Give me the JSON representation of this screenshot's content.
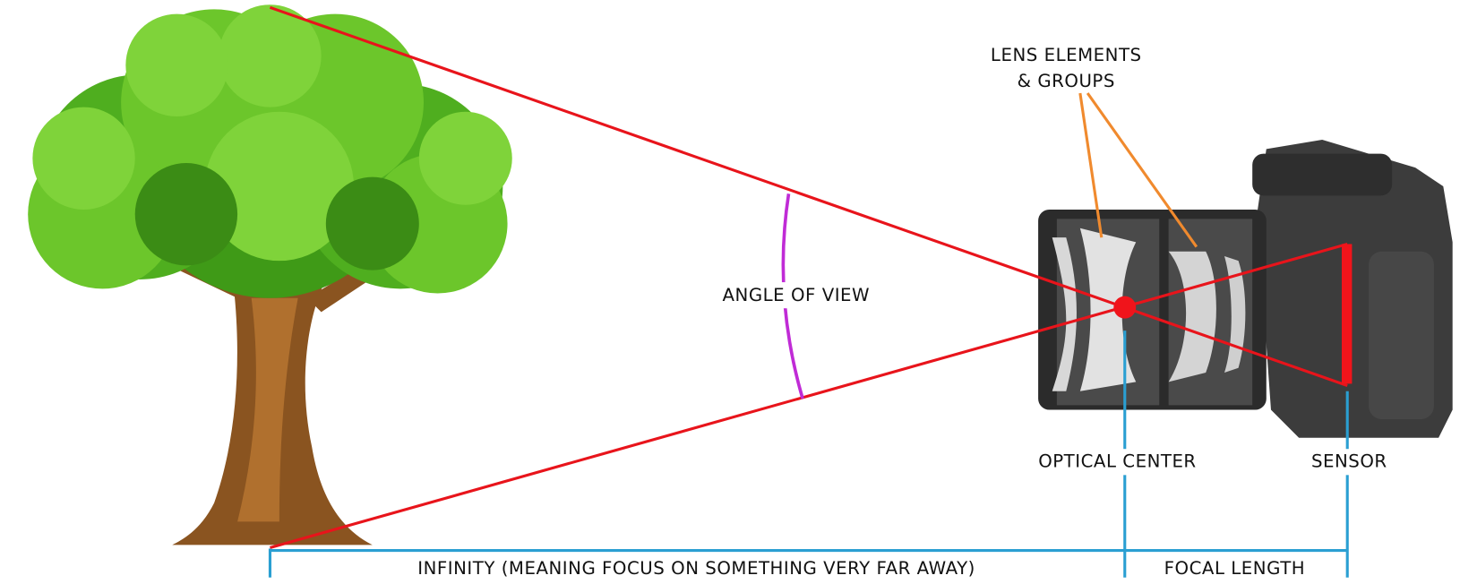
{
  "labels": {
    "lens_elements": [
      "LENS ELEMENTS",
      "& GROUPS"
    ],
    "angle_of_view": "ANGLE OF VIEW",
    "optical_center": "OPTICAL CENTER",
    "sensor": "SENSOR",
    "infinity": "INFINITY (MEANING FOCUS ON SOMETHING VERY FAR AWAY)",
    "focal_length": "FOCAL LENGTH"
  }
}
